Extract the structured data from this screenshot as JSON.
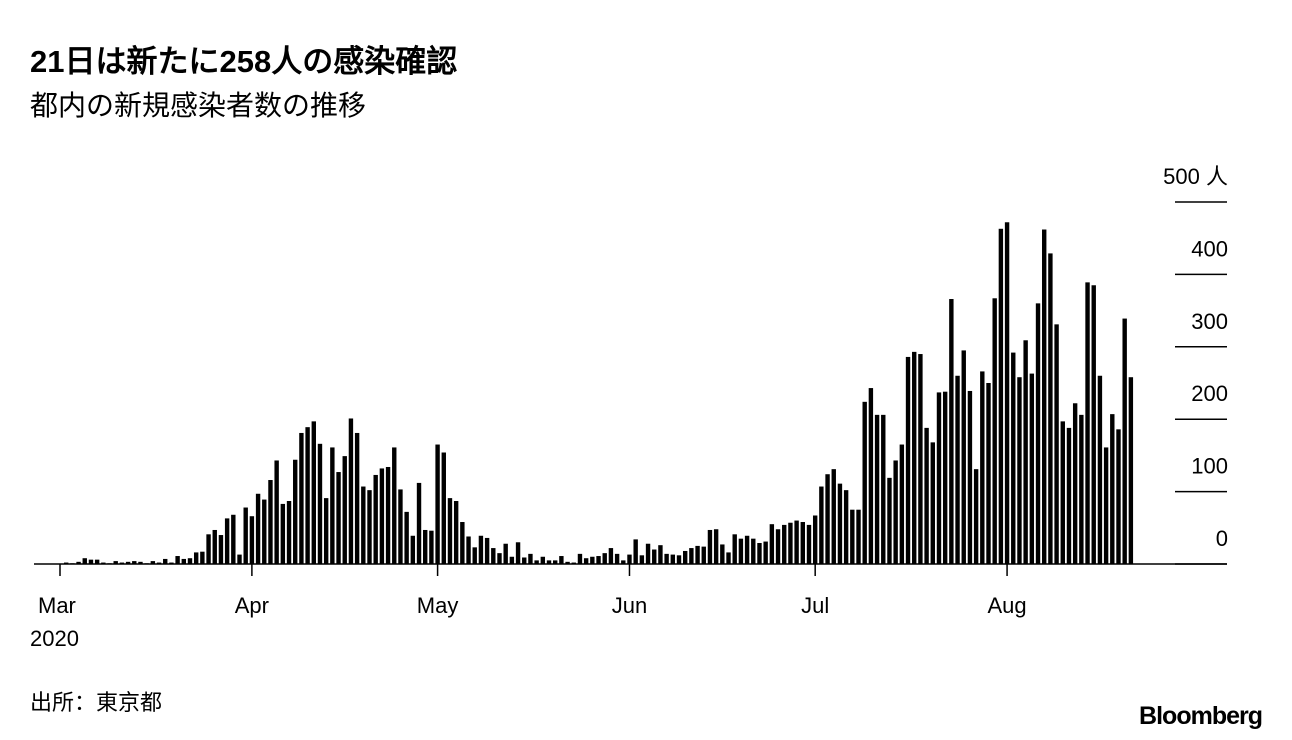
{
  "chart_data": {
    "type": "bar",
    "title": "21日は新たに258人の感染確認",
    "subtitle": "都内の新規感染者数の推移",
    "source": "出所：東京都",
    "brand": "Bloomberg",
    "year_label": "2020",
    "color": "#000000",
    "categories": [
      "Mar",
      null,
      null,
      null,
      null,
      null,
      null,
      null,
      null,
      null,
      null,
      null,
      null,
      null,
      null,
      null,
      null,
      null,
      null,
      null,
      null,
      null,
      null,
      null,
      null,
      null,
      null,
      null,
      null,
      null,
      null,
      "Apr",
      null,
      null,
      null,
      null,
      null,
      null,
      null,
      null,
      null,
      null,
      null,
      null,
      null,
      null,
      null,
      null,
      null,
      null,
      null,
      null,
      null,
      null,
      null,
      null,
      null,
      null,
      null,
      null,
      null,
      "May",
      null,
      null,
      null,
      null,
      null,
      null,
      null,
      null,
      null,
      null,
      null,
      null,
      null,
      null,
      null,
      null,
      null,
      null,
      null,
      null,
      null,
      null,
      null,
      null,
      null,
      null,
      null,
      null,
      null,
      null,
      "Jun",
      null,
      null,
      null,
      null,
      null,
      null,
      null,
      null,
      null,
      null,
      null,
      null,
      null,
      null,
      null,
      null,
      null,
      null,
      null,
      null,
      null,
      null,
      null,
      null,
      null,
      null,
      null,
      null,
      null,
      "Jul",
      null,
      null,
      null,
      null,
      null,
      null,
      null,
      null,
      null,
      null,
      null,
      null,
      null,
      null,
      null,
      null,
      null,
      null,
      null,
      null,
      null,
      null,
      null,
      null,
      null,
      null,
      null,
      null,
      null,
      null,
      "Aug",
      null,
      null,
      null,
      null,
      null,
      null,
      null,
      null,
      null,
      null,
      null,
      null,
      null,
      null,
      null,
      null,
      null,
      null,
      null,
      null
    ],
    "values": [
      0,
      2,
      1,
      3,
      8,
      6,
      6,
      2,
      1,
      4,
      2,
      3,
      4,
      3,
      1,
      4,
      2,
      7,
      2,
      11,
      7,
      8,
      16,
      17,
      41,
      47,
      40,
      63,
      68,
      13,
      78,
      66,
      97,
      89,
      116,
      143,
      83,
      87,
      144,
      181,
      189,
      197,
      166,
      91,
      161,
      127,
      149,
      201,
      181,
      107,
      102,
      123,
      132,
      134,
      161,
      103,
      72,
      39,
      112,
      47,
      46,
      165,
      154,
      91,
      87,
      58,
      38,
      23,
      39,
      36,
      22,
      15,
      28,
      10,
      30,
      9,
      14,
      5,
      10,
      5,
      5,
      11,
      3,
      2,
      14,
      8,
      10,
      11,
      15,
      22,
      14,
      5,
      13,
      34,
      12,
      28,
      20,
      26,
      14,
      13,
      12,
      18,
      22,
      25,
      24,
      47,
      48,
      27,
      16,
      41,
      35,
      39,
      35,
      29,
      31,
      55,
      48,
      54,
      57,
      60,
      58,
      54,
      67,
      107,
      124,
      131,
      111,
      102,
      75,
      75,
      224,
      243,
      206,
      206,
      119,
      143,
      165,
      286,
      293,
      290,
      188,
      168,
      237,
      238,
      366,
      260,
      295,
      239,
      131,
      266,
      250,
      367,
      463,
      472,
      292,
      258,
      309,
      263,
      360,
      462,
      429,
      331,
      197,
      188,
      222,
      206,
      389,
      385,
      260,
      161,
      207,
      186,
      339,
      258
    ],
    "ylim": [
      0,
      500
    ],
    "yticks": [
      0,
      100,
      200,
      300,
      400,
      {
        "value": 500,
        "label": "500 人"
      }
    ]
  }
}
